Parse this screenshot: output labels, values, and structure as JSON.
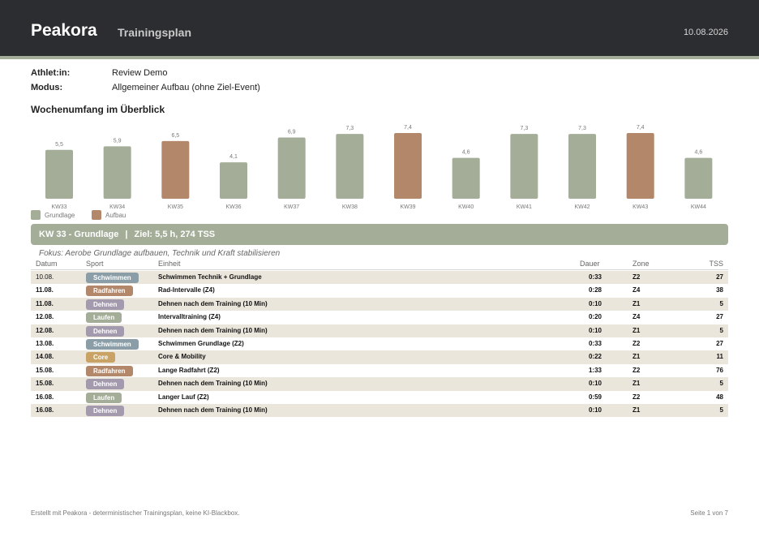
{
  "header": {
    "brand": "Peakora",
    "title": "Trainingsplan",
    "date": "10.08.2026",
    "bg_color": "#2c2d30",
    "stripe_color": "#a3ad98"
  },
  "meta": {
    "athlete_label": "Athlet:in:",
    "athlete_value": "Review Demo",
    "mode_label": "Modus:",
    "mode_value": "Allgemeiner Aufbau (ohne Ziel-Event)"
  },
  "overview_title": "Wochenumfang im Überblick",
  "chart_data": {
    "type": "bar",
    "categories": [
      "KW33",
      "KW34",
      "KW35",
      "KW36",
      "KW37",
      "KW38",
      "KW39",
      "KW40",
      "KW41",
      "KW42",
      "KW43",
      "KW44"
    ],
    "values": [
      5.5,
      5.9,
      6.5,
      4.1,
      6.9,
      7.3,
      7.4,
      4.6,
      7.3,
      7.3,
      7.4,
      4.6
    ],
    "value_labels": [
      "5,5",
      "5,9",
      "6,5",
      "4,1",
      "6,9",
      "7,3",
      "7,4",
      "4,6",
      "7,3",
      "7,3",
      "7,4",
      "4,6"
    ],
    "phases": [
      "Grundlage",
      "Grundlage",
      "Aufbau",
      "Grundlage",
      "Grundlage",
      "Grundlage",
      "Aufbau",
      "Grundlage",
      "Grundlage",
      "Grundlage",
      "Aufbau",
      "Grundlage"
    ],
    "legend": [
      {
        "name": "Grundlage",
        "color": "#a3ad98"
      },
      {
        "name": "Aufbau",
        "color": "#b3876a"
      }
    ],
    "legend_position": "bottom-left",
    "ylim": [
      0,
      7.4
    ],
    "grid": false,
    "title": "",
    "xlabel": "",
    "ylabel": ""
  },
  "week": {
    "label": "KW 33 - Grundlage",
    "separator": "|",
    "goal": "Ziel: 5,5 h, 274 TSS",
    "focus": "Fokus: Aerobe Grundlage aufbauen, Technik und Kraft stabilisieren",
    "banner_color": "#a3ad98"
  },
  "table": {
    "columns": {
      "date": "Datum",
      "sport": "Sport",
      "unit": "Einheit",
      "duration": "Dauer",
      "zone": "Zone",
      "tss": "TSS"
    },
    "sport_colors": {
      "Schwimmen": "#8b9ea8",
      "Radfahren": "#b3876a",
      "Dehnen": "#a39aae",
      "Laufen": "#a3ad98",
      "Core": "#c9a365"
    },
    "rows": [
      {
        "date": "10.08.",
        "sport": "Schwimmen",
        "unit": "Schwimmen Technik + Grundlage",
        "duration": "0:33",
        "zone": "Z2",
        "tss": "27"
      },
      {
        "date": "11.08.",
        "sport": "Radfahren",
        "unit": "Rad-Intervalle (Z4)",
        "duration": "0:28",
        "zone": "Z4",
        "tss": "38"
      },
      {
        "date": "11.08.",
        "sport": "Dehnen",
        "unit": "Dehnen nach dem Training (10 Min)",
        "duration": "0:10",
        "zone": "Z1",
        "tss": "5"
      },
      {
        "date": "12.08.",
        "sport": "Laufen",
        "unit": "Intervalltraining (Z4)",
        "duration": "0:20",
        "zone": "Z4",
        "tss": "27"
      },
      {
        "date": "12.08.",
        "sport": "Dehnen",
        "unit": "Dehnen nach dem Training (10 Min)",
        "duration": "0:10",
        "zone": "Z1",
        "tss": "5"
      },
      {
        "date": "13.08.",
        "sport": "Schwimmen",
        "unit": "Schwimmen Grundlage (Z2)",
        "duration": "0:33",
        "zone": "Z2",
        "tss": "27"
      },
      {
        "date": "14.08.",
        "sport": "Core",
        "unit": "Core & Mobility",
        "duration": "0:22",
        "zone": "Z1",
        "tss": "11"
      },
      {
        "date": "15.08.",
        "sport": "Radfahren",
        "unit": "Lange Radfahrt (Z2)",
        "duration": "1:33",
        "zone": "Z2",
        "tss": "76"
      },
      {
        "date": "15.08.",
        "sport": "Dehnen",
        "unit": "Dehnen nach dem Training (10 Min)",
        "duration": "0:10",
        "zone": "Z1",
        "tss": "5"
      },
      {
        "date": "16.08.",
        "sport": "Laufen",
        "unit": "Langer Lauf (Z2)",
        "duration": "0:59",
        "zone": "Z2",
        "tss": "48"
      },
      {
        "date": "16.08.",
        "sport": "Dehnen",
        "unit": "Dehnen nach dem Training (10 Min)",
        "duration": "0:10",
        "zone": "Z1",
        "tss": "5"
      }
    ]
  },
  "footer": {
    "left": "Erstellt mit Peakora - deterministischer Trainingsplan, keine KI-Blackbox.",
    "right": "Seite 1 von 7"
  }
}
